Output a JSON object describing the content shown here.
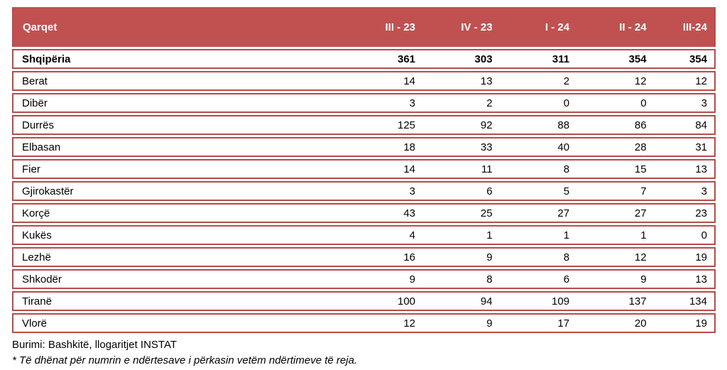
{
  "colors": {
    "header_bg": "#C15151",
    "header_text": "#FFFFFF",
    "row_border": "#B94A48",
    "body_text": "#000000",
    "row_bg": "#FFFFFF"
  },
  "table": {
    "title_column": "Qarqet",
    "columns": [
      "III - 23",
      "IV - 23",
      "I - 24",
      "II - 24",
      "III-24"
    ],
    "total_row": {
      "label": "Shqipëria",
      "values": [
        361,
        303,
        311,
        354,
        354
      ]
    },
    "rows": [
      {
        "label": "Berat",
        "values": [
          14,
          13,
          2,
          12,
          12
        ]
      },
      {
        "label": "Dibër",
        "values": [
          3,
          2,
          0,
          0,
          3
        ]
      },
      {
        "label": "Durrës",
        "values": [
          125,
          92,
          88,
          86,
          84
        ]
      },
      {
        "label": "Elbasan",
        "values": [
          18,
          33,
          40,
          28,
          31
        ]
      },
      {
        "label": "Fier",
        "values": [
          14,
          11,
          8,
          15,
          13
        ]
      },
      {
        "label": "Gjirokastër",
        "values": [
          3,
          6,
          5,
          7,
          3
        ]
      },
      {
        "label": "Korçë",
        "values": [
          43,
          25,
          27,
          27,
          23
        ]
      },
      {
        "label": "Kukës",
        "values": [
          4,
          1,
          1,
          1,
          0
        ]
      },
      {
        "label": "Lezhë",
        "values": [
          16,
          9,
          8,
          12,
          19
        ]
      },
      {
        "label": "Shkodër",
        "values": [
          9,
          8,
          6,
          9,
          13
        ]
      },
      {
        "label": "Tiranë",
        "values": [
          100,
          94,
          109,
          137,
          134
        ]
      },
      {
        "label": "Vlorë",
        "values": [
          12,
          9,
          17,
          20,
          19
        ]
      }
    ]
  },
  "footer": {
    "source": "Burimi: Bashkitë, llogaritjet INSTAT",
    "note": "* Të dhënat për numrin e ndërtesave i përkasin vetëm ndërtimeve të reja."
  }
}
